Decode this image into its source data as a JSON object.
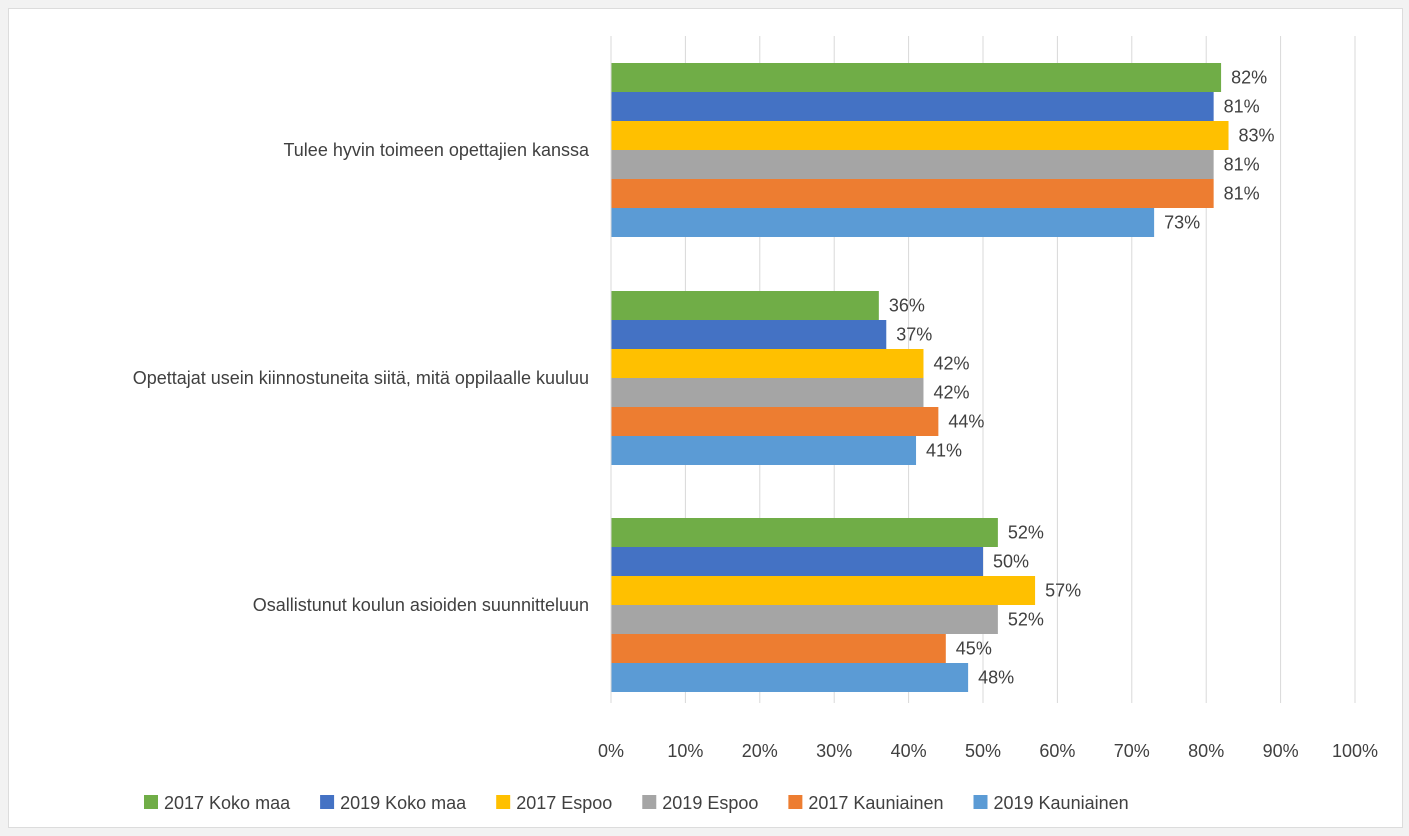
{
  "chart_data": {
    "type": "bar",
    "orientation": "horizontal",
    "title": "",
    "xlabel": "",
    "ylabel": "",
    "xlim": [
      0,
      100
    ],
    "x_ticks": [
      "0%",
      "10%",
      "20%",
      "30%",
      "40%",
      "50%",
      "60%",
      "70%",
      "80%",
      "90%",
      "100%"
    ],
    "grid": "vertical",
    "legend_position": "bottom",
    "categories": [
      "Tulee hyvin toimeen opettajien kanssa",
      "Opettajat usein kiinnostuneita siitä, mitä oppilaalle kuuluu",
      "Osallistunut koulun asioiden suunnitteluun"
    ],
    "series": [
      {
        "name": "2017 Koko maa",
        "color": "#70ad47",
        "values": [
          82,
          36,
          52
        ],
        "labels": [
          "82%",
          "36%",
          "52%"
        ]
      },
      {
        "name": "2019 Koko maa",
        "color": "#4472c4",
        "values": [
          81,
          37,
          50
        ],
        "labels": [
          "81%",
          "37%",
          "50%"
        ]
      },
      {
        "name": "2017 Espoo",
        "color": "#ffc000",
        "values": [
          83,
          42,
          57
        ],
        "labels": [
          "83%",
          "42%",
          "57%"
        ]
      },
      {
        "name": "2019 Espoo",
        "color": "#a5a5a5",
        "values": [
          81,
          42,
          52
        ],
        "labels": [
          "81%",
          "42%",
          "52%"
        ]
      },
      {
        "name": "2017 Kauniainen",
        "color": "#ed7d31",
        "values": [
          81,
          44,
          45
        ],
        "labels": [
          "81%",
          "44%",
          "45%"
        ]
      },
      {
        "name": "2019 Kauniainen",
        "color": "#5b9bd5",
        "values": [
          73,
          41,
          48
        ],
        "labels": [
          "73%",
          "41%",
          "48%"
        ]
      }
    ]
  }
}
